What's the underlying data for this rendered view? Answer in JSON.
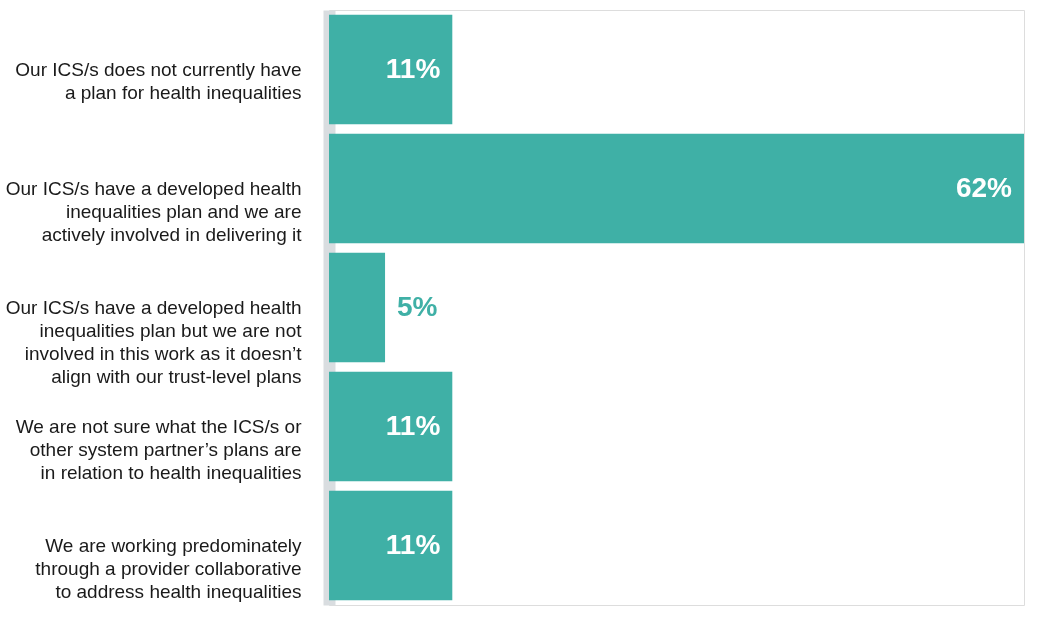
{
  "chart_data": {
    "type": "bar",
    "orientation": "horizontal",
    "categories": [
      "Our ICS/s does not currently have\na plan for health inequalities",
      "Our ICS/s have a developed health\ninequalities plan and we are\nactively involved in delivering it",
      "Our ICS/s have a developed health\ninequalities plan but we are not\ninvolved in this work as it doesn’t\nalign with our trust-level plans",
      "We are not sure what the ICS/s or\nother system partner’s plans are\nin relation to health inequalities",
      "We are working predominately\nthrough a provider collaborative\nto address health inequalities"
    ],
    "values": [
      11,
      62,
      5,
      11,
      11
    ],
    "value_labels": [
      "11%",
      "62%",
      "5%",
      "11%",
      "11%"
    ],
    "color": "#3fb0a6"
  }
}
